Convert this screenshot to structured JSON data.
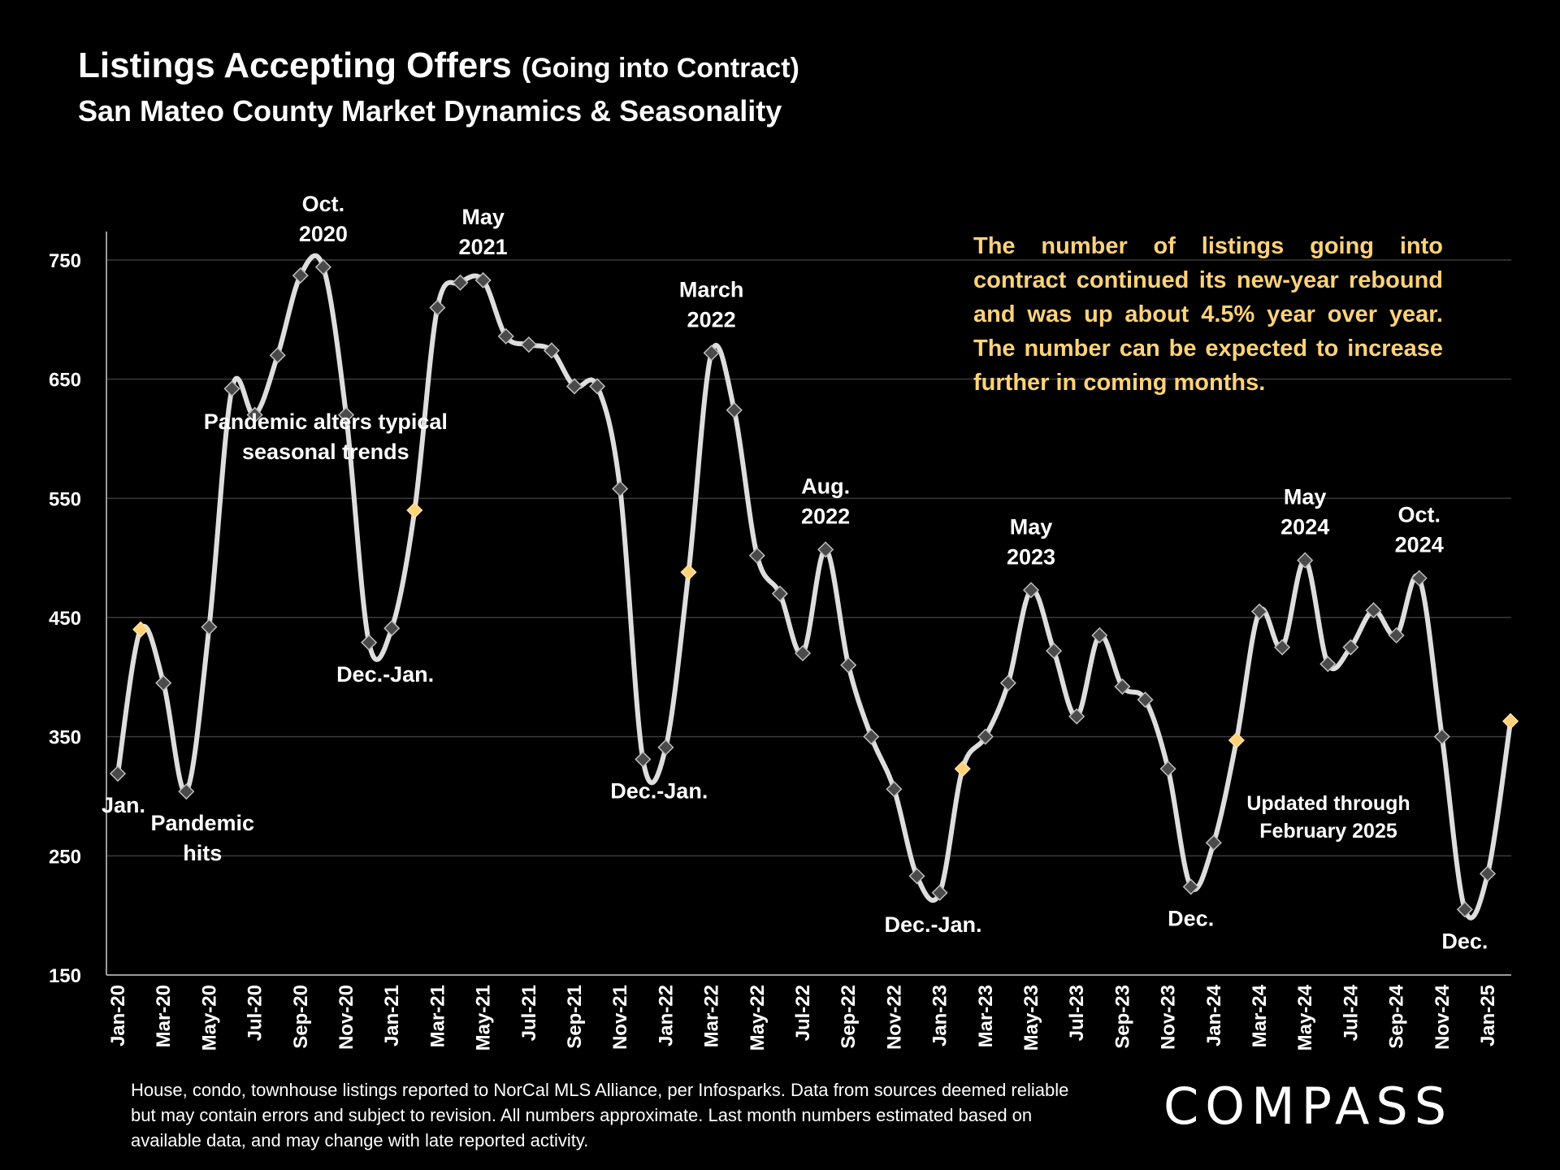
{
  "header": {
    "title": "Listings Accepting Offers",
    "title_suffix": "(Going into Contract)",
    "subtitle": "San Mateo County Market Dynamics & Seasonality"
  },
  "chart_data": {
    "type": "line",
    "ylim": [
      150,
      750
    ],
    "yticks": [
      150,
      250,
      350,
      450,
      550,
      650,
      750
    ],
    "grid": true,
    "x_tick_labels": [
      "Jan-20",
      "Mar-20",
      "May-20",
      "Jul-20",
      "Sep-20",
      "Nov-20",
      "Jan-21",
      "Mar-21",
      "May-21",
      "Jul-21",
      "Sep-21",
      "Nov-21",
      "Jan-22",
      "Mar-22",
      "May-22",
      "Jul-22",
      "Sep-22",
      "Nov-22",
      "Jan-23",
      "Mar-23",
      "May-23",
      "Jul-23",
      "Sep-23",
      "Nov-23",
      "Jan-24",
      "Mar-24",
      "May-24",
      "Jul-24",
      "Sep-24",
      "Nov-24",
      "Jan-25"
    ],
    "x": [
      "Jan-20",
      "Feb-20",
      "Mar-20",
      "Apr-20",
      "May-20",
      "Jun-20",
      "Jul-20",
      "Aug-20",
      "Sep-20",
      "Oct-20",
      "Nov-20",
      "Dec-20",
      "Jan-21",
      "Feb-21",
      "Mar-21",
      "Apr-21",
      "May-21",
      "Jun-21",
      "Jul-21",
      "Aug-21",
      "Sep-21",
      "Oct-21",
      "Nov-21",
      "Dec-21",
      "Jan-22",
      "Feb-22",
      "Mar-22",
      "Apr-22",
      "May-22",
      "Jun-22",
      "Jul-22",
      "Aug-22",
      "Sep-22",
      "Oct-22",
      "Nov-22",
      "Dec-22",
      "Jan-23",
      "Feb-23",
      "Mar-23",
      "Apr-23",
      "May-23",
      "Jun-23",
      "Jul-23",
      "Aug-23",
      "Sep-23",
      "Oct-23",
      "Nov-23",
      "Dec-23",
      "Jan-24",
      "Feb-24",
      "Mar-24",
      "Apr-24",
      "May-24",
      "Jun-24",
      "Jul-24",
      "Aug-24",
      "Sep-24",
      "Oct-24",
      "Nov-24",
      "Dec-24",
      "Jan-25",
      "Feb-25"
    ],
    "values": [
      319,
      440,
      395,
      304,
      442,
      642,
      620,
      670,
      737,
      744,
      620,
      429,
      441,
      540,
      710,
      731,
      733,
      686,
      679,
      674,
      644,
      644,
      558,
      331,
      341,
      488,
      672,
      624,
      502,
      470,
      420,
      507,
      410,
      350,
      306,
      233,
      219,
      323,
      350,
      395,
      473,
      422,
      367,
      435,
      392,
      381,
      323,
      224,
      261,
      347,
      455,
      425,
      498,
      411,
      425,
      456,
      435,
      483,
      350,
      205,
      235,
      363
    ],
    "highlight_months": [
      "Feb-20",
      "Feb-21",
      "Feb-22",
      "Feb-23",
      "Feb-24",
      "Feb-25"
    ],
    "colors": {
      "line": "#dedede",
      "marker": "#4a4a4a",
      "highlight": "#ffd27a",
      "grid": "#3a3a3a",
      "background": "#000000"
    },
    "annotations": [
      {
        "x": "Jan-20",
        "value": 319,
        "lines": [
          "Jan."
        ]
      },
      {
        "x": "Apr-20",
        "value": 304,
        "lines": [
          "Pandemic",
          "hits"
        ]
      },
      {
        "x": "Oct-20",
        "value": 744,
        "lines": [
          "Oct.",
          "2020"
        ]
      },
      {
        "x": "Dec-20",
        "value": 429,
        "lines": [
          "Dec.-Jan."
        ]
      },
      {
        "x": "Sep-20",
        "value": 600,
        "lines": [
          "Pandemic alters typical",
          "seasonal trends"
        ]
      },
      {
        "x": "May-21",
        "value": 733,
        "lines": [
          "May",
          "2021"
        ]
      },
      {
        "x": "Dec-21",
        "value": 331,
        "lines": [
          "Dec.-Jan."
        ]
      },
      {
        "x": "Mar-22",
        "value": 672,
        "lines": [
          "March",
          "2022"
        ]
      },
      {
        "x": "Aug-22",
        "value": 507,
        "lines": [
          "Aug.",
          "2022"
        ]
      },
      {
        "x": "Dec-22",
        "value": 219,
        "lines": [
          "Dec.-Jan."
        ]
      },
      {
        "x": "May-23",
        "value": 473,
        "lines": [
          "May",
          "2023"
        ]
      },
      {
        "x": "Dec-23",
        "value": 224,
        "lines": [
          "Dec."
        ]
      },
      {
        "x": "May-24",
        "value": 498,
        "lines": [
          "May",
          "2024"
        ]
      },
      {
        "x": "Oct-24",
        "value": 483,
        "lines": [
          "Oct.",
          "2024"
        ]
      },
      {
        "x": "Dec-24",
        "value": 205,
        "lines": [
          "Dec."
        ]
      }
    ]
  },
  "callout": "The number of listings going into contract continued its new-year rebound and was up about 4.5% year over year. The number can be expected to increase further in coming months.",
  "updated_note": {
    "line1": "Updated through",
    "line2": "February 2025"
  },
  "footnote": "House, condo, townhouse listings reported to NorCal MLS Alliance, per Infosparks. Data from sources deemed reliable but may contain errors and subject to revision. All numbers approximate. Last month numbers estimated based on available data, and may change with late reported activity.",
  "logo": "COMPASS"
}
